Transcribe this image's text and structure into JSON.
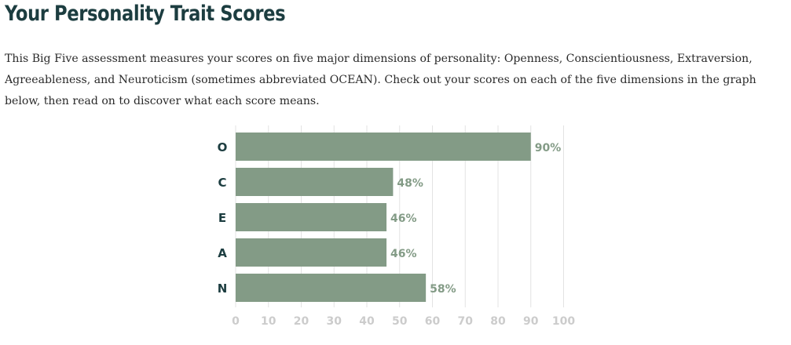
{
  "header": {
    "title": "Your Personality Trait Scores"
  },
  "intro": {
    "text": "This Big Five assessment measures your scores on five major dimensions of personality: Openness, Conscientiousness, Extraversion, Agreeableness, and Neuroticism (sometimes abbreviated OCEAN). Check out your scores on each of the five dimensions in the graph below, then read on to discover what each score means."
  },
  "chart_data": {
    "type": "bar",
    "orientation": "horizontal",
    "categories": [
      "O",
      "C",
      "E",
      "A",
      "N"
    ],
    "values": [
      90,
      48,
      46,
      46,
      58
    ],
    "value_labels": [
      "90%",
      "48%",
      "46%",
      "46%",
      "58%"
    ],
    "xlim": [
      0,
      100
    ],
    "x_ticks": [
      0,
      10,
      20,
      30,
      40,
      50,
      60,
      70,
      80,
      90,
      100
    ],
    "grid": true,
    "title": "",
    "xlabel": "",
    "ylabel": "",
    "colors": {
      "bar": "#839b86",
      "value_label": "#839b86",
      "category_label": "#1c3d40",
      "tick_label": "#cccccc",
      "grid": "#e3e3e3"
    }
  }
}
